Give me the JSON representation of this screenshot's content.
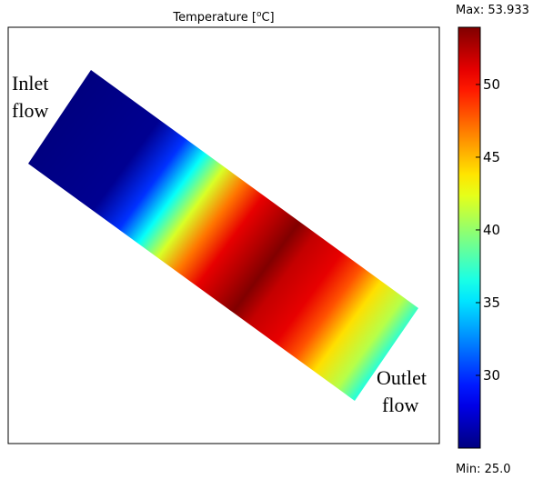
{
  "chart_data": {
    "type": "heatmap",
    "title": "Temperature [",
    "title_unit_sup": "o",
    "title_unit_suffix": "C]",
    "colorbar": {
      "max_label": "Max: 53.933",
      "min_label": "Min: 25.0",
      "min": 25.0,
      "max": 53.933,
      "ticks": [
        30,
        35,
        40,
        45,
        50
      ],
      "colormap": "jet"
    },
    "annotations": {
      "inlet_line1": "Inlet",
      "inlet_line2": "flow",
      "outlet_line1": "Outlet",
      "outlet_line2": "flow"
    },
    "temperature_profile_along_flow": [
      {
        "s": 0.0,
        "t": 25.0
      },
      {
        "s": 0.2,
        "t": 25.5
      },
      {
        "s": 0.28,
        "t": 30.0
      },
      {
        "s": 0.34,
        "t": 36.0
      },
      {
        "s": 0.4,
        "t": 42.0
      },
      {
        "s": 0.46,
        "t": 47.0
      },
      {
        "s": 0.52,
        "t": 51.0
      },
      {
        "s": 0.58,
        "t": 52.5
      },
      {
        "s": 0.63,
        "t": 53.9
      },
      {
        "s": 0.68,
        "t": 52.0
      },
      {
        "s": 0.76,
        "t": 51.0
      },
      {
        "s": 0.82,
        "t": 48.0
      },
      {
        "s": 0.88,
        "t": 44.0
      },
      {
        "s": 0.95,
        "t": 41.0
      },
      {
        "s": 1.0,
        "t": 37.0
      }
    ]
  }
}
